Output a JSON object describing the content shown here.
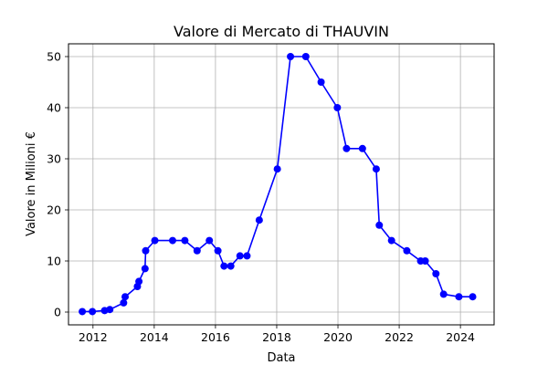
{
  "chart_data": {
    "type": "line",
    "title": "Valore di Mercato di THAUVIN",
    "xlabel": "Data",
    "ylabel": "Valore in Milioni €",
    "xlim": [
      2011.2,
      2025.1
    ],
    "ylim": [
      -2.5,
      52.5
    ],
    "xticks": [
      2012,
      2014,
      2016,
      2018,
      2020,
      2022,
      2024
    ],
    "xtick_labels": [
      "2012",
      "2014",
      "2016",
      "2018",
      "2020",
      "2022",
      "2024"
    ],
    "yticks": [
      0,
      10,
      20,
      30,
      40,
      50
    ],
    "ytick_labels": [
      "0",
      "10",
      "20",
      "30",
      "40",
      "50"
    ],
    "grid": true,
    "color": "#0000ff",
    "series": [
      {
        "x": [
          2011.65,
          2011.98,
          2012.38,
          2012.55,
          2013.0,
          2013.05,
          2013.45,
          2013.5,
          2013.7,
          2013.72,
          2014.02,
          2014.6,
          2015.0,
          2015.4,
          2015.8,
          2016.08,
          2016.28,
          2016.5,
          2016.8,
          2017.03,
          2017.43,
          2018.02,
          2018.45,
          2018.95,
          2019.45,
          2019.98,
          2020.28,
          2020.8,
          2021.25,
          2021.35,
          2021.75,
          2022.25,
          2022.7,
          2022.85,
          2023.2,
          2023.45,
          2023.95,
          2024.4
        ],
        "y": [
          0.1,
          0.1,
          0.3,
          0.5,
          1.8,
          3.0,
          5.0,
          6.0,
          8.5,
          12.0,
          14.0,
          14.0,
          14.0,
          12.0,
          14.0,
          12.0,
          9.0,
          9.0,
          11.0,
          11.0,
          18.0,
          28.0,
          50.0,
          50.0,
          45.0,
          40.0,
          32.0,
          32.0,
          28.0,
          17.0,
          14.0,
          12.0,
          10.0,
          10.0,
          7.5,
          3.5,
          3.0,
          3.0
        ]
      }
    ]
  }
}
